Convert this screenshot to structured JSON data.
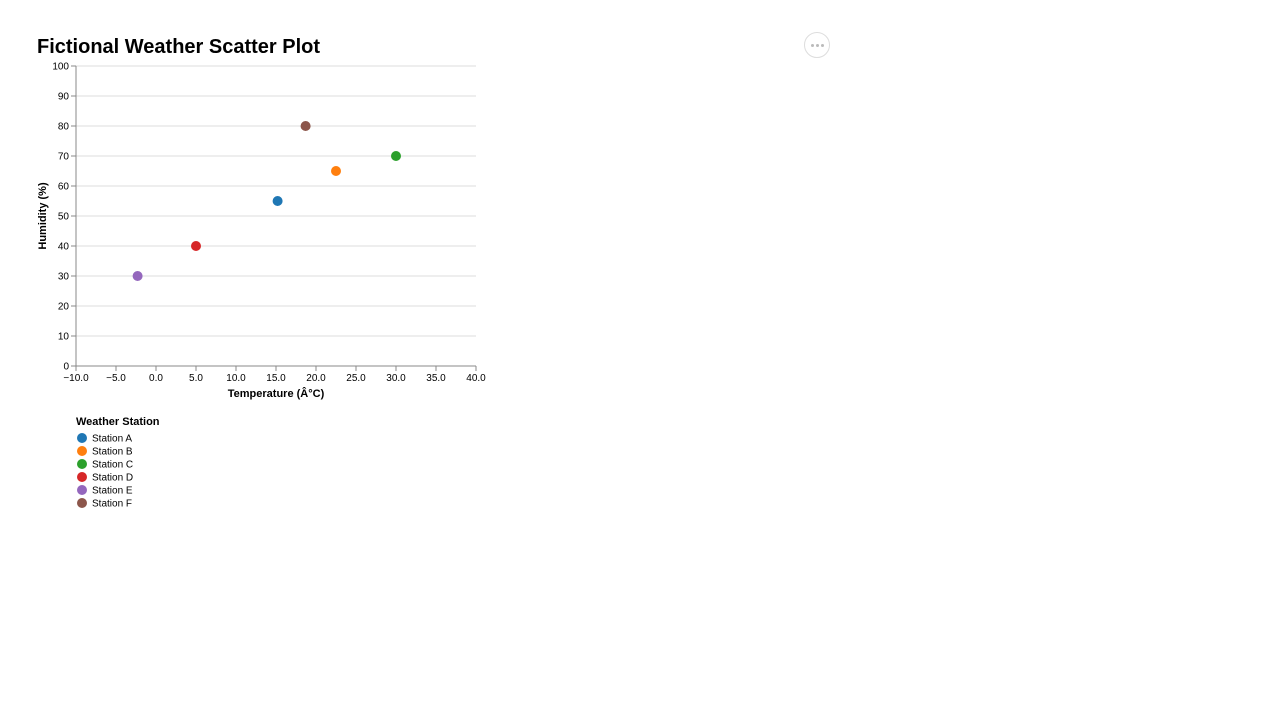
{
  "actions_menu": {
    "icon": "more-horizontal-icon"
  },
  "chart_data": {
    "type": "scatter",
    "title": "Fictional Weather Scatter Plot",
    "xlabel": "Temperature (Â°C)",
    "ylabel": "Humidity (%)",
    "xlim": [
      -10,
      40
    ],
    "ylim": [
      0,
      100
    ],
    "x_ticks": [
      "−10.0",
      "−5.0",
      "0.0",
      "5.0",
      "10.0",
      "15.0",
      "20.0",
      "25.0",
      "30.0",
      "35.0",
      "40.0"
    ],
    "y_ticks": [
      "0",
      "10",
      "20",
      "30",
      "40",
      "50",
      "60",
      "70",
      "80",
      "90",
      "100"
    ],
    "grid": "horizontal",
    "legend": {
      "title": "Weather Station",
      "placement": "bottom-left"
    },
    "series": [
      {
        "name": "Station A",
        "color": "#1f77b4",
        "x": 15.2,
        "y": 55
      },
      {
        "name": "Station B",
        "color": "#ff7f0e",
        "x": 22.5,
        "y": 65
      },
      {
        "name": "Station C",
        "color": "#2ca02c",
        "x": 30.0,
        "y": 70
      },
      {
        "name": "Station D",
        "color": "#d62728",
        "x": 5.0,
        "y": 40
      },
      {
        "name": "Station E",
        "color": "#9467bd",
        "x": -2.3,
        "y": 30
      },
      {
        "name": "Station F",
        "color": "#8c564b",
        "x": 18.7,
        "y": 80
      }
    ]
  }
}
